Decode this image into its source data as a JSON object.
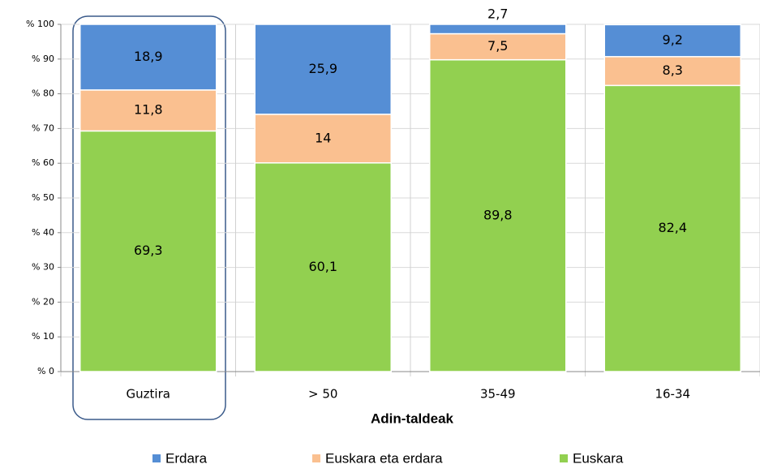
{
  "chart_data": {
    "type": "stacked_bar",
    "x_label": "Adin-taldeak",
    "categories": [
      "Guztira",
      "> 50",
      "35-49",
      "16-34"
    ],
    "series": [
      {
        "name": "Erdara",
        "color": "#558ed5",
        "values": [
          18.9,
          25.9,
          2.7,
          9.2
        ],
        "value_labels": [
          "18,9",
          "25,9",
          "2,7",
          "9,2"
        ]
      },
      {
        "name": "Euskara eta erdara",
        "color": "#fac090",
        "values": [
          11.8,
          14,
          7.5,
          8.3
        ],
        "value_labels": [
          "11,8",
          "14",
          "7,5",
          "8,3"
        ]
      },
      {
        "name": "Euskara",
        "color": "#92d050",
        "values": [
          69.3,
          60.1,
          89.8,
          82.4
        ],
        "value_labels": [
          "69,3",
          "60,1",
          "89,8",
          "82,4"
        ]
      }
    ],
    "ylim": [
      0,
      100
    ],
    "yticks": [
      {
        "value": 0,
        "label": "% 0"
      },
      {
        "value": 10,
        "label": "% 10"
      },
      {
        "value": 20,
        "label": "% 20"
      },
      {
        "value": 30,
        "label": "% 30"
      },
      {
        "value": 40,
        "label": "% 40"
      },
      {
        "value": 50,
        "label": "% 50"
      },
      {
        "value": 60,
        "label": "% 60"
      },
      {
        "value": 70,
        "label": "% 70"
      },
      {
        "value": 80,
        "label": "% 80"
      },
      {
        "value": 90,
        "label": "% 90"
      },
      {
        "value": 100,
        "label": "% 100"
      }
    ],
    "grid": true
  }
}
